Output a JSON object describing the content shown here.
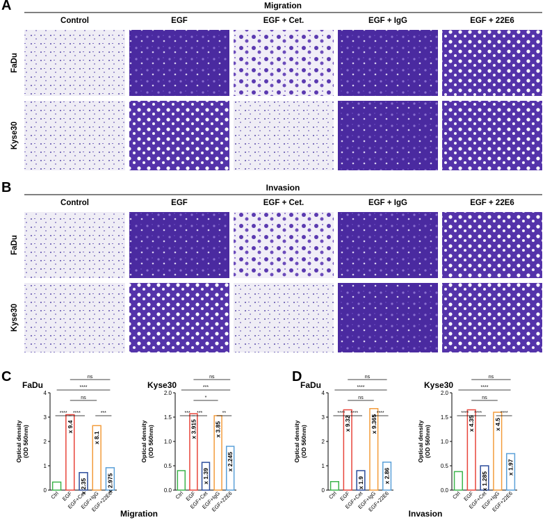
{
  "panels": {
    "A": {
      "letter": "A",
      "title": "Migration",
      "columns": [
        "Control",
        "EGF",
        "EGF + Cet.",
        "EGF + IgG",
        "EGF + 22E6"
      ],
      "rows": [
        "FaDu",
        "Kyse30"
      ]
    },
    "B": {
      "letter": "B",
      "title": "Invasion",
      "columns": [
        "Control",
        "EGF",
        "EGF + Cet.",
        "EGF + IgG",
        "EGF + 22E6"
      ],
      "rows": [
        "FaDu",
        "Kyse30"
      ]
    },
    "C": {
      "letter": "C",
      "caption": "Migration"
    },
    "D": {
      "letter": "D",
      "caption": "Invasion"
    }
  },
  "chart_data": [
    {
      "type": "bar",
      "title": "FaDu",
      "ylabel": "Optical density",
      "ylabel2": "(OD 560nm)",
      "categories": [
        "Ctrl",
        "EGF",
        "EGF+Cet",
        "EGF+IgG",
        "EGF+22E6"
      ],
      "values": [
        0.33,
        3.1,
        0.72,
        2.65,
        0.92
      ],
      "colors": [
        "#3cb44b",
        "#e8443a",
        "#2b4c9b",
        "#f39c3c",
        "#5aa0d8"
      ],
      "ylim": [
        0,
        4
      ],
      "yticks": [
        0,
        1,
        2,
        3,
        4
      ],
      "fold_labels": [
        "x 9.4",
        "x 2.35",
        "x 8.1",
        "x 2.975"
      ],
      "comparisons": [
        {
          "text": "****",
          "from": 0,
          "to": 1
        },
        {
          "text": "****",
          "from": 1,
          "to": 2
        },
        {
          "text": "***",
          "from": 3,
          "to": 4
        },
        {
          "text": "ns",
          "from": 1,
          "to": 3
        },
        {
          "text": "****",
          "from": 0,
          "to": 4
        },
        {
          "text": "ns",
          "from": 1,
          "to": 4
        }
      ]
    },
    {
      "type": "bar",
      "title": "Kyse30",
      "ylabel": "Optical density",
      "ylabel2": "(OD 560nm)",
      "categories": [
        "Ctrl",
        "EGF",
        "EGF+Cet",
        "EGF+IgG",
        "EGF+22E6"
      ],
      "values": [
        0.4,
        1.57,
        0.57,
        1.53,
        0.9
      ],
      "colors": [
        "#3cb44b",
        "#e8443a",
        "#2b4c9b",
        "#f39c3c",
        "#5aa0d8"
      ],
      "ylim": [
        0,
        2
      ],
      "yticks": [
        {
          "value": 0,
          "label": "0.0"
        },
        0.5,
        {
          "value": 1,
          "label": "1.0"
        },
        1.5,
        {
          "value": 2,
          "label": "2.0"
        }
      ],
      "fold_labels": [
        "x 3.915",
        "x 1.39",
        "x 3.85",
        "x 2.245"
      ],
      "comparisons": [
        {
          "text": "***",
          "from": 0,
          "to": 1
        },
        {
          "text": "***",
          "from": 1,
          "to": 2
        },
        {
          "text": "**",
          "from": 3,
          "to": 4
        },
        {
          "text": "*",
          "from": 1,
          "to": 3
        },
        {
          "text": "***",
          "from": 0,
          "to": 4
        },
        {
          "text": "ns",
          "from": 1,
          "to": 4
        }
      ]
    },
    {
      "type": "bar",
      "title": "FaDu",
      "ylabel": "Optical density",
      "ylabel2": "(OD 560nm)",
      "categories": [
        "Ctrl",
        "EGF",
        "EGF+Cet",
        "EGF+IgG",
        "EGF+22E6"
      ],
      "values": [
        0.35,
        3.3,
        0.8,
        3.35,
        1.15
      ],
      "colors": [
        "#3cb44b",
        "#e8443a",
        "#2b4c9b",
        "#f39c3c",
        "#5aa0d8"
      ],
      "ylim": [
        0,
        4
      ],
      "yticks": [
        0,
        1,
        2,
        3,
        4
      ],
      "fold_labels": [
        "x 9.32",
        "x 1.9",
        "x 9.365",
        "x 2.86"
      ],
      "comparisons": [
        {
          "text": "****",
          "from": 0,
          "to": 1
        },
        {
          "text": "****",
          "from": 1,
          "to": 2
        },
        {
          "text": "****",
          "from": 3,
          "to": 4
        },
        {
          "text": "ns",
          "from": 1,
          "to": 3
        },
        {
          "text": "****",
          "from": 0,
          "to": 4
        },
        {
          "text": "ns",
          "from": 1,
          "to": 4
        }
      ]
    },
    {
      "type": "bar",
      "title": "Kyse30",
      "ylabel": "Optical density",
      "ylabel2": "(OD 560nm)",
      "categories": [
        "Ctrl",
        "EGF",
        "EGF+Cet",
        "EGF+IgG",
        "EGF+22E6"
      ],
      "values": [
        0.38,
        1.65,
        0.5,
        1.6,
        0.75
      ],
      "colors": [
        "#3cb44b",
        "#e8443a",
        "#2b4c9b",
        "#f39c3c",
        "#5aa0d8"
      ],
      "ylim": [
        0,
        2
      ],
      "yticks": [
        {
          "value": 0,
          "label": "0.0"
        },
        0.5,
        {
          "value": 1,
          "label": "1.0"
        },
        1.5,
        {
          "value": 2,
          "label": "2.0"
        }
      ],
      "fold_labels": [
        "x 4.35",
        "x 1.285",
        "x 4.5",
        "x 1.97"
      ],
      "comparisons": [
        {
          "text": "****",
          "from": 0,
          "to": 1
        },
        {
          "text": "****",
          "from": 1,
          "to": 2
        },
        {
          "text": "****",
          "from": 3,
          "to": 4
        },
        {
          "text": "ns",
          "from": 1,
          "to": 3
        },
        {
          "text": "****",
          "from": 0,
          "to": 4
        },
        {
          "text": "ns",
          "from": 1,
          "to": 4
        }
      ]
    }
  ]
}
